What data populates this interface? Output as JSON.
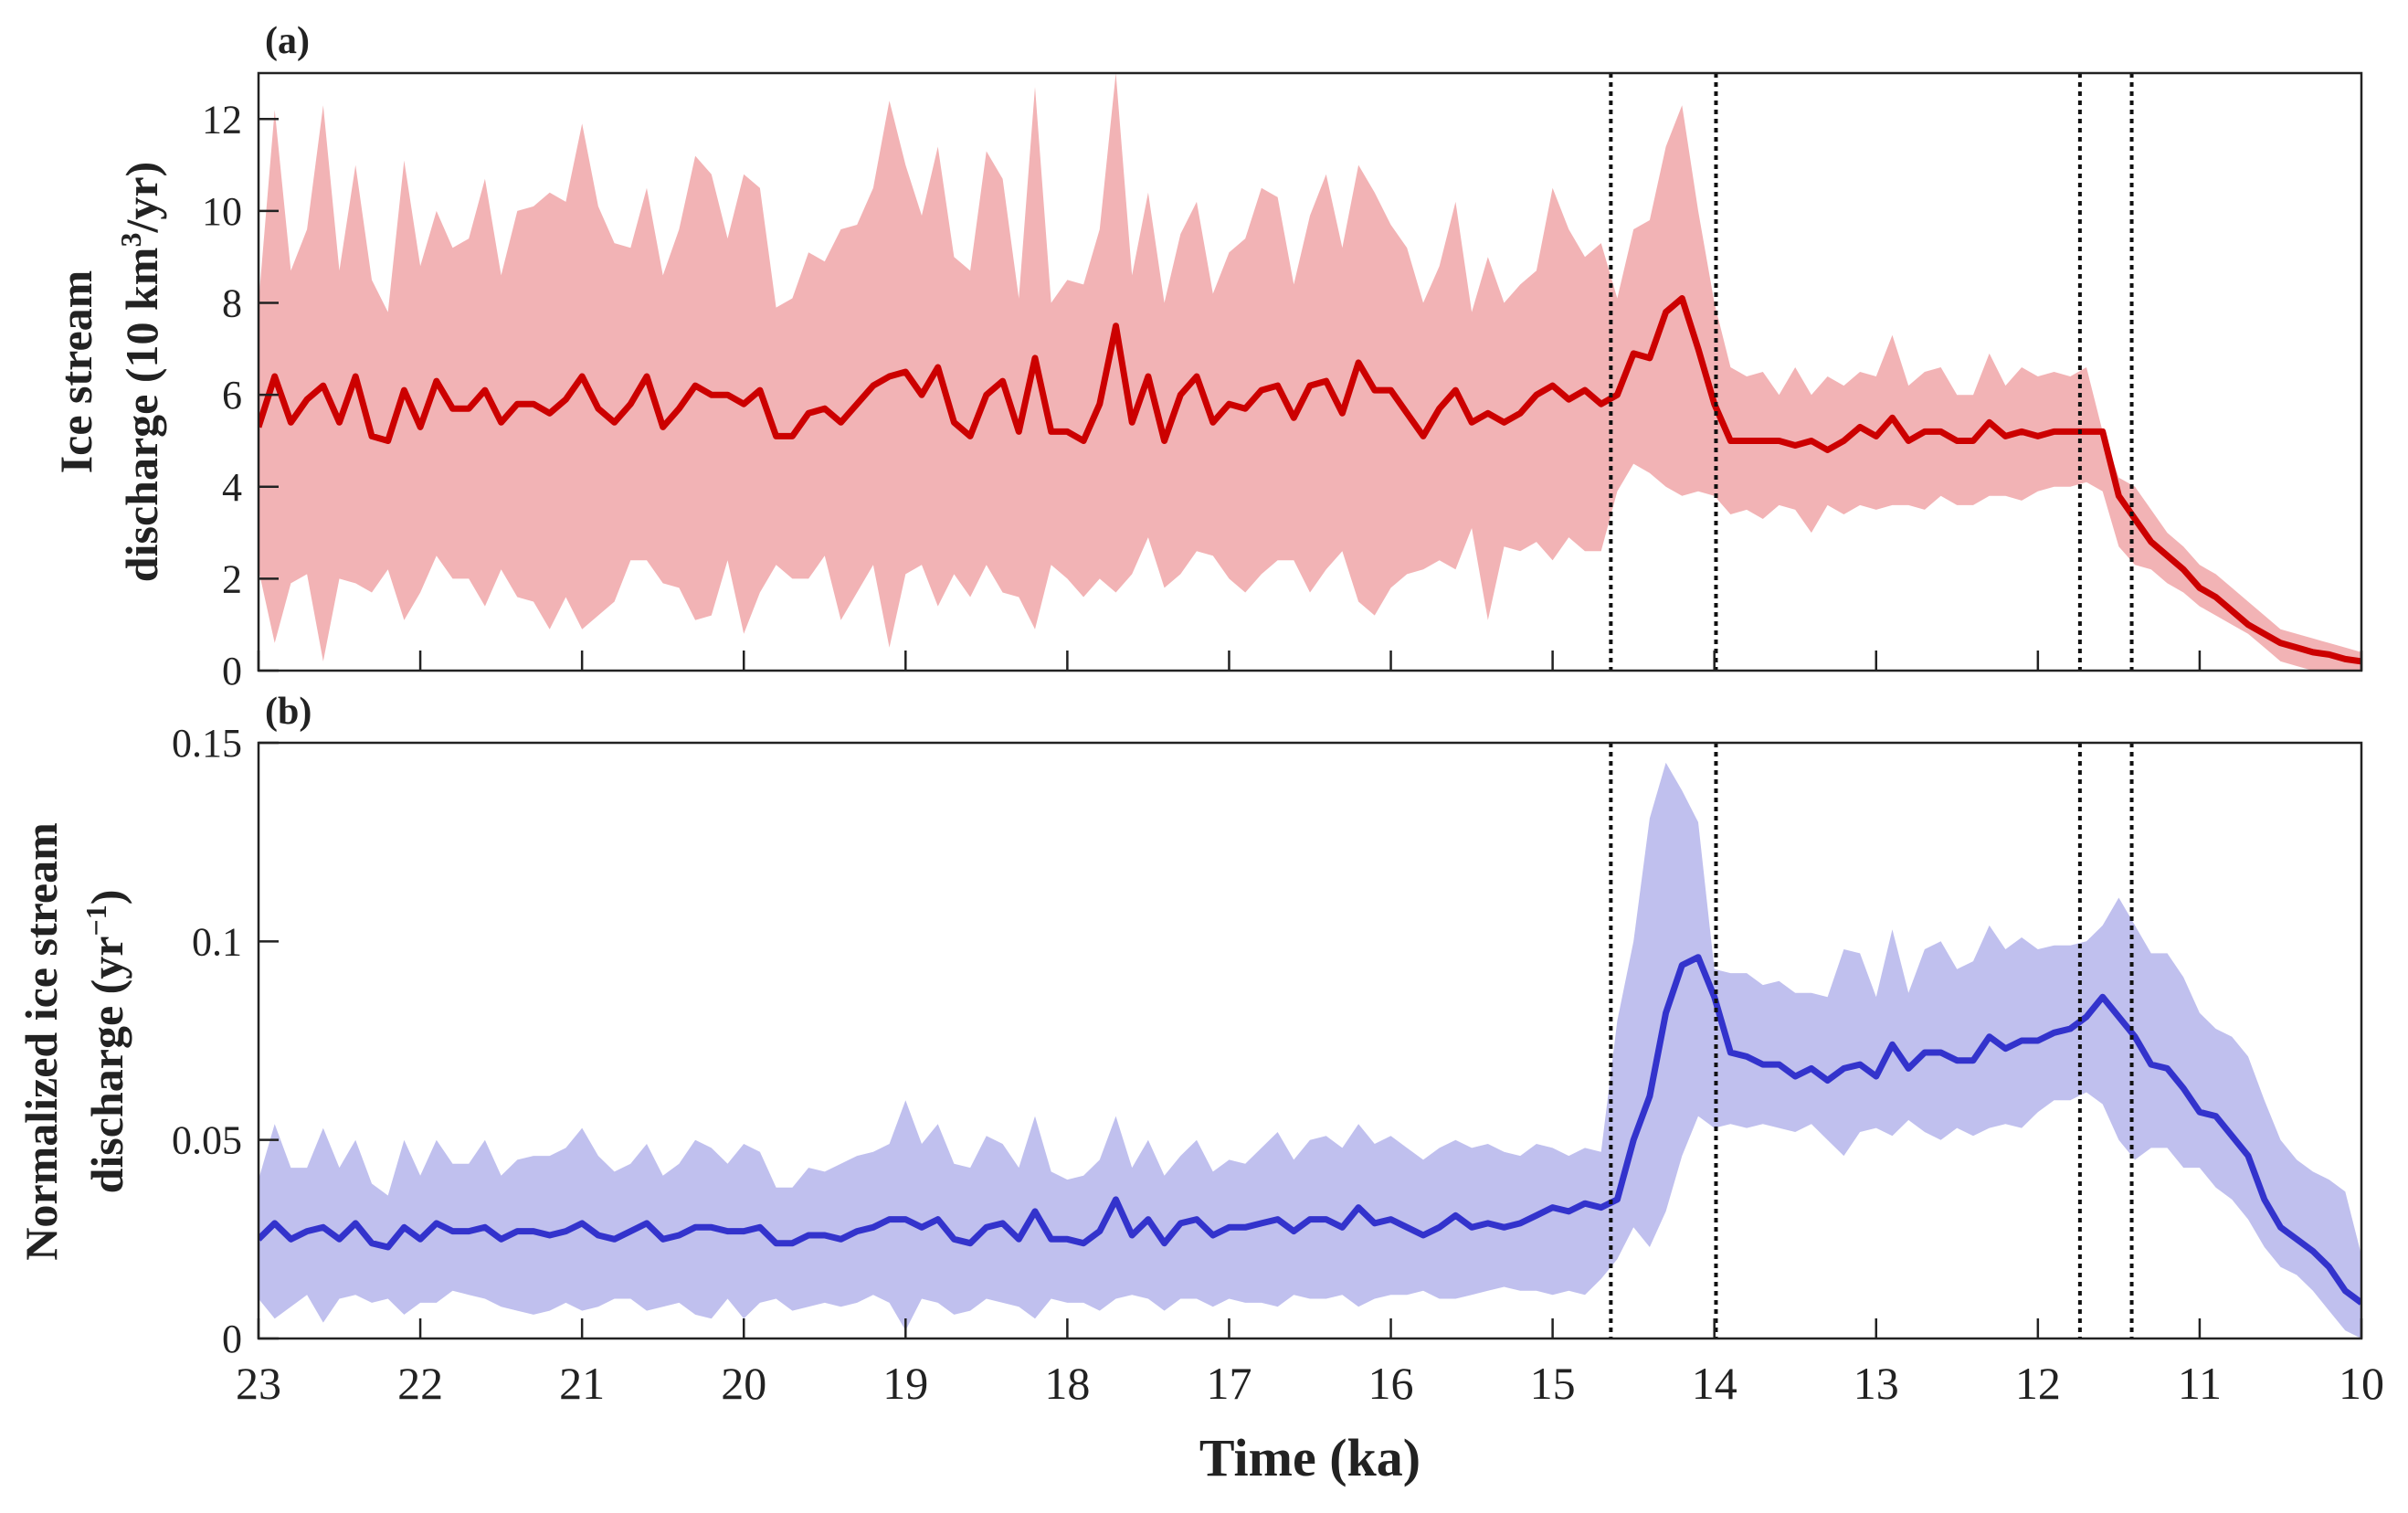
{
  "chart_data": [
    {
      "type": "area",
      "panel_label": "(a)",
      "ylabel_lines": [
        "Ice stream",
        "discharge (10 km",
        "3",
        "/yr)"
      ],
      "ylim": [
        0,
        13
      ],
      "yticks": [
        0,
        2,
        4,
        6,
        8,
        10,
        12
      ],
      "xlim": [
        23,
        10
      ],
      "xaxis_reversed": true,
      "xticks": [
        23,
        22,
        21,
        20,
        19,
        18,
        17,
        16,
        15,
        14,
        13,
        12,
        11,
        10
      ],
      "x_tick_labels_shown": false,
      "grid": false,
      "line_color": "#cc0000",
      "band_color": "#f2b3b5",
      "x": [
        23.0,
        22.9,
        22.8,
        22.7,
        22.6,
        22.5,
        22.4,
        22.3,
        22.2,
        22.1,
        22.0,
        21.9,
        21.8,
        21.7,
        21.6,
        21.5,
        21.4,
        21.3,
        21.2,
        21.1,
        21.0,
        20.9,
        20.8,
        20.7,
        20.6,
        20.5,
        20.4,
        20.3,
        20.2,
        20.1,
        20.0,
        19.9,
        19.8,
        19.7,
        19.6,
        19.5,
        19.4,
        19.3,
        19.2,
        19.1,
        19.0,
        18.9,
        18.8,
        18.7,
        18.6,
        18.5,
        18.4,
        18.3,
        18.2,
        18.1,
        18.0,
        17.9,
        17.8,
        17.7,
        17.6,
        17.5,
        17.4,
        17.3,
        17.2,
        17.1,
        17.0,
        16.9,
        16.8,
        16.7,
        16.6,
        16.5,
        16.4,
        16.3,
        16.2,
        16.1,
        16.0,
        15.9,
        15.8,
        15.7,
        15.6,
        15.5,
        15.4,
        15.3,
        15.2,
        15.1,
        15.0,
        14.9,
        14.8,
        14.7,
        14.6,
        14.5,
        14.4,
        14.3,
        14.2,
        14.1,
        14.0,
        13.9,
        13.8,
        13.7,
        13.6,
        13.5,
        13.4,
        13.3,
        13.2,
        13.1,
        13.0,
        12.9,
        12.8,
        12.7,
        12.6,
        12.5,
        12.4,
        12.3,
        12.2,
        12.1,
        12.0,
        11.9,
        11.8,
        11.7,
        11.6,
        11.5,
        11.4,
        11.3,
        11.2,
        11.1,
        11.0,
        10.9,
        10.8,
        10.7,
        10.6,
        10.5,
        10.4,
        10.3,
        10.2,
        10.1,
        10.0
      ],
      "mean": [
        5.3,
        6.4,
        5.4,
        5.9,
        6.2,
        5.4,
        6.4,
        5.1,
        5.0,
        6.1,
        5.3,
        6.3,
        5.7,
        5.7,
        6.1,
        5.4,
        5.8,
        5.8,
        5.6,
        5.9,
        6.4,
        5.7,
        5.4,
        5.8,
        6.4,
        5.3,
        5.7,
        6.2,
        6.0,
        6.0,
        5.8,
        6.1,
        5.1,
        5.1,
        5.6,
        5.7,
        5.4,
        5.8,
        6.2,
        6.4,
        6.5,
        6.0,
        6.6,
        5.4,
        5.1,
        6.0,
        6.3,
        5.2,
        6.8,
        5.2,
        5.2,
        5.0,
        5.8,
        7.5,
        5.4,
        6.4,
        5.0,
        6.0,
        6.4,
        5.4,
        5.8,
        5.7,
        6.1,
        6.2,
        5.5,
        6.2,
        6.3,
        5.6,
        6.7,
        6.1,
        6.1,
        5.6,
        5.1,
        5.7,
        6.1,
        5.4,
        5.6,
        5.4,
        5.6,
        6.0,
        6.2,
        5.9,
        6.1,
        5.8,
        6.0,
        6.9,
        6.8,
        7.8,
        8.1,
        7.0,
        5.8,
        5.0,
        5.0,
        5.0,
        5.0,
        4.9,
        5.0,
        4.8,
        5.0,
        5.3,
        5.1,
        5.5,
        5.0,
        5.2,
        5.2,
        5.0,
        5.0,
        5.4,
        5.1,
        5.2,
        5.1,
        5.2,
        5.2,
        5.2,
        5.2,
        3.8,
        3.3,
        2.8,
        2.5,
        2.2,
        1.8,
        1.6,
        1.3,
        1.0,
        0.8,
        0.6,
        0.5,
        0.4,
        0.35,
        0.25,
        0.2
      ],
      "upper": [
        8.0,
        12.2,
        8.7,
        9.6,
        12.3,
        8.7,
        11.0,
        8.5,
        7.8,
        11.1,
        8.8,
        10.0,
        9.2,
        9.4,
        10.7,
        8.6,
        10.0,
        10.1,
        10.4,
        10.2,
        11.9,
        10.1,
        9.3,
        9.2,
        10.5,
        8.6,
        9.6,
        11.2,
        10.8,
        9.4,
        10.8,
        10.5,
        7.9,
        8.1,
        9.1,
        8.9,
        9.6,
        9.7,
        10.5,
        12.4,
        11.0,
        9.9,
        11.4,
        9.0,
        8.7,
        11.3,
        10.7,
        8.1,
        12.7,
        8.0,
        8.5,
        8.4,
        9.6,
        13.0,
        8.6,
        10.4,
        8.0,
        9.5,
        10.2,
        8.2,
        9.1,
        9.4,
        10.5,
        10.3,
        8.4,
        9.9,
        10.8,
        9.2,
        11.0,
        10.4,
        9.7,
        9.2,
        8.0,
        8.8,
        10.2,
        7.8,
        9.0,
        8.0,
        8.4,
        8.7,
        10.5,
        9.6,
        9.0,
        9.3,
        8.1,
        9.6,
        9.8,
        11.4,
        12.3,
        10.0,
        8.0,
        6.6,
        6.4,
        6.5,
        6.0,
        6.6,
        6.0,
        6.4,
        6.2,
        6.5,
        6.4,
        7.3,
        6.2,
        6.5,
        6.6,
        6.0,
        6.0,
        6.9,
        6.2,
        6.6,
        6.4,
        6.5,
        6.4,
        6.6,
        5.2,
        4.2,
        4.0,
        3.5,
        3.0,
        2.7,
        2.3,
        2.1,
        1.8,
        1.5,
        1.2,
        0.9,
        0.8,
        0.7,
        0.6,
        0.5,
        0.4
      ],
      "lower": [
        2.2,
        0.6,
        1.9,
        2.1,
        0.2,
        2.0,
        1.9,
        1.7,
        2.2,
        1.1,
        1.7,
        2.5,
        2.0,
        2.0,
        1.4,
        2.2,
        1.6,
        1.5,
        0.9,
        1.6,
        0.9,
        1.2,
        1.5,
        2.4,
        2.4,
        1.9,
        1.8,
        1.1,
        1.2,
        2.4,
        0.8,
        1.7,
        2.3,
        2.0,
        2.0,
        2.5,
        1.1,
        1.7,
        2.3,
        0.5,
        2.1,
        2.3,
        1.4,
        2.1,
        1.6,
        2.3,
        1.7,
        1.6,
        0.9,
        2.3,
        2.0,
        1.6,
        2.0,
        1.7,
        2.1,
        2.9,
        1.8,
        2.1,
        2.6,
        2.5,
        2.0,
        1.7,
        2.1,
        2.4,
        2.4,
        1.7,
        2.2,
        2.6,
        1.5,
        1.2,
        1.8,
        2.1,
        2.2,
        2.4,
        2.2,
        3.1,
        1.1,
        2.7,
        2.6,
        2.8,
        2.4,
        2.9,
        2.6,
        2.6,
        3.9,
        4.5,
        4.3,
        4.0,
        3.8,
        3.9,
        3.8,
        3.4,
        3.5,
        3.3,
        3.6,
        3.5,
        3.0,
        3.6,
        3.4,
        3.6,
        3.5,
        3.6,
        3.6,
        3.5,
        3.8,
        3.6,
        3.6,
        3.8,
        3.8,
        3.7,
        3.9,
        4.0,
        4.0,
        4.1,
        3.9,
        2.7,
        2.3,
        2.2,
        1.9,
        1.7,
        1.4,
        1.2,
        1.0,
        0.8,
        0.5,
        0.2,
        0.1,
        0.0,
        0.0,
        0.0,
        0.0
      ],
      "vlines": [
        14.64,
        13.99,
        11.74,
        11.42
      ]
    },
    {
      "type": "area",
      "panel_label": "(b)",
      "ylabel_lines": [
        "Normalized ice stream",
        "discharge (yr",
        "−1",
        ")"
      ],
      "ylim": [
        0,
        0.15
      ],
      "yticks": [
        0,
        0.05,
        0.1,
        0.15
      ],
      "ytick_labels": [
        "0",
        "0.05",
        "0.1",
        "0.15"
      ],
      "xlim": [
        23,
        10
      ],
      "xaxis_reversed": true,
      "xticks": [
        23,
        22,
        21,
        20,
        19,
        18,
        17,
        16,
        15,
        14,
        13,
        12,
        11,
        10
      ],
      "xtick_labels": [
        "23",
        "22",
        "21",
        "20",
        "19",
        "18",
        "17",
        "16",
        "15",
        "14",
        "13",
        "12",
        "11",
        "10"
      ],
      "xlabel": "Time (ka)",
      "grid": false,
      "line_color": "#3333cc",
      "band_color": "#c0c0ee",
      "mean": [
        0.025,
        0.029,
        0.025,
        0.027,
        0.028,
        0.025,
        0.029,
        0.024,
        0.023,
        0.028,
        0.025,
        0.029,
        0.027,
        0.027,
        0.028,
        0.025,
        0.027,
        0.027,
        0.026,
        0.027,
        0.029,
        0.026,
        0.025,
        0.027,
        0.029,
        0.025,
        0.026,
        0.028,
        0.028,
        0.027,
        0.027,
        0.028,
        0.024,
        0.024,
        0.026,
        0.026,
        0.025,
        0.027,
        0.028,
        0.03,
        0.03,
        0.028,
        0.03,
        0.025,
        0.024,
        0.028,
        0.029,
        0.025,
        0.032,
        0.025,
        0.025,
        0.024,
        0.027,
        0.035,
        0.026,
        0.03,
        0.024,
        0.029,
        0.03,
        0.026,
        0.028,
        0.028,
        0.029,
        0.03,
        0.027,
        0.03,
        0.03,
        0.028,
        0.033,
        0.029,
        0.03,
        0.028,
        0.026,
        0.028,
        0.031,
        0.028,
        0.029,
        0.028,
        0.029,
        0.031,
        0.033,
        0.032,
        0.034,
        0.033,
        0.035,
        0.05,
        0.061,
        0.082,
        0.094,
        0.096,
        0.086,
        0.072,
        0.071,
        0.069,
        0.069,
        0.066,
        0.068,
        0.065,
        0.068,
        0.069,
        0.066,
        0.074,
        0.068,
        0.072,
        0.072,
        0.07,
        0.07,
        0.076,
        0.073,
        0.075,
        0.075,
        0.077,
        0.078,
        0.081,
        0.086,
        0.081,
        0.076,
        0.069,
        0.068,
        0.063,
        0.057,
        0.056,
        0.051,
        0.046,
        0.035,
        0.028,
        0.025,
        0.022,
        0.018,
        0.012,
        0.009
      ],
      "upper": [
        0.04,
        0.054,
        0.043,
        0.043,
        0.053,
        0.043,
        0.05,
        0.039,
        0.036,
        0.05,
        0.041,
        0.05,
        0.044,
        0.044,
        0.05,
        0.041,
        0.045,
        0.046,
        0.046,
        0.048,
        0.053,
        0.046,
        0.042,
        0.044,
        0.049,
        0.041,
        0.044,
        0.05,
        0.048,
        0.044,
        0.049,
        0.047,
        0.038,
        0.038,
        0.043,
        0.042,
        0.044,
        0.046,
        0.047,
        0.049,
        0.06,
        0.049,
        0.054,
        0.044,
        0.043,
        0.051,
        0.049,
        0.043,
        0.056,
        0.042,
        0.04,
        0.041,
        0.045,
        0.056,
        0.043,
        0.05,
        0.041,
        0.046,
        0.05,
        0.042,
        0.045,
        0.044,
        0.048,
        0.052,
        0.045,
        0.05,
        0.051,
        0.048,
        0.054,
        0.049,
        0.051,
        0.048,
        0.045,
        0.048,
        0.05,
        0.048,
        0.049,
        0.047,
        0.046,
        0.049,
        0.048,
        0.046,
        0.048,
        0.047,
        0.08,
        0.1,
        0.131,
        0.145,
        0.138,
        0.13,
        0.093,
        0.092,
        0.092,
        0.089,
        0.09,
        0.087,
        0.087,
        0.086,
        0.098,
        0.097,
        0.086,
        0.103,
        0.087,
        0.098,
        0.1,
        0.093,
        0.095,
        0.104,
        0.098,
        0.101,
        0.098,
        0.099,
        0.099,
        0.1,
        0.104,
        0.111,
        0.104,
        0.097,
        0.097,
        0.091,
        0.082,
        0.078,
        0.076,
        0.071,
        0.06,
        0.05,
        0.045,
        0.042,
        0.04,
        0.037,
        0.021
      ],
      "lower": [
        0.01,
        0.005,
        0.008,
        0.011,
        0.004,
        0.01,
        0.011,
        0.009,
        0.01,
        0.006,
        0.009,
        0.009,
        0.012,
        0.011,
        0.01,
        0.008,
        0.007,
        0.006,
        0.007,
        0.009,
        0.007,
        0.008,
        0.01,
        0.01,
        0.007,
        0.008,
        0.009,
        0.006,
        0.005,
        0.01,
        0.005,
        0.009,
        0.01,
        0.007,
        0.008,
        0.009,
        0.008,
        0.009,
        0.011,
        0.009,
        0.002,
        0.01,
        0.009,
        0.006,
        0.007,
        0.01,
        0.009,
        0.008,
        0.005,
        0.01,
        0.009,
        0.009,
        0.007,
        0.01,
        0.011,
        0.01,
        0.007,
        0.01,
        0.01,
        0.008,
        0.01,
        0.009,
        0.009,
        0.008,
        0.011,
        0.01,
        0.01,
        0.011,
        0.008,
        0.01,
        0.011,
        0.011,
        0.012,
        0.01,
        0.01,
        0.011,
        0.012,
        0.013,
        0.012,
        0.012,
        0.011,
        0.012,
        0.011,
        0.015,
        0.02,
        0.028,
        0.023,
        0.032,
        0.046,
        0.056,
        0.053,
        0.054,
        0.053,
        0.054,
        0.053,
        0.052,
        0.054,
        0.05,
        0.046,
        0.052,
        0.053,
        0.051,
        0.055,
        0.052,
        0.05,
        0.053,
        0.051,
        0.053,
        0.054,
        0.053,
        0.057,
        0.06,
        0.06,
        0.062,
        0.059,
        0.05,
        0.045,
        0.048,
        0.048,
        0.043,
        0.043,
        0.038,
        0.035,
        0.03,
        0.023,
        0.018,
        0.016,
        0.012,
        0.007,
        0.002,
        0.0
      ],
      "vlines": [
        14.64,
        13.99,
        11.74,
        11.42
      ]
    }
  ]
}
